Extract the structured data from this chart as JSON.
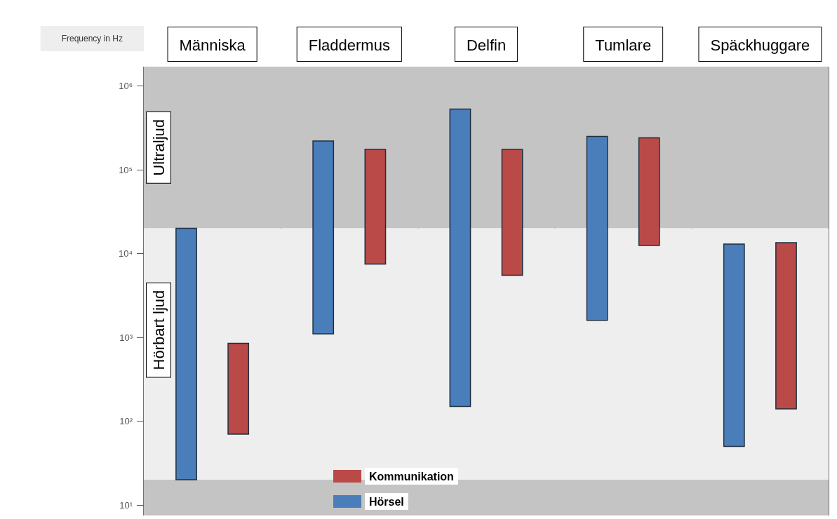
{
  "chart_data": {
    "type": "bar",
    "ylabel": "Frequency in Hz",
    "categories": [
      "Människa",
      "Fladdermus",
      "Delfin",
      "Tumlare",
      "Späckhuggare"
    ],
    "series": [
      {
        "name": "Hörsel",
        "color": "#4a7ebb",
        "base": [
          20,
          1100,
          150,
          1600,
          50
        ],
        "values": [
          19980,
          218900,
          529850,
          248400,
          12950
        ]
      },
      {
        "name": "Kommunikation",
        "color": "#b94a48",
        "base": [
          70,
          7500,
          5500,
          12500,
          140
        ],
        "values": [
          780,
          167500,
          169500,
          227500,
          13360
        ]
      }
    ],
    "log": "y",
    "ylim": [
      7.5,
      1700000
    ],
    "yticks": [
      {
        "value": 10,
        "label": "10¹"
      },
      {
        "value": 100,
        "label": "10²"
      },
      {
        "value": 1000,
        "label": "10³"
      },
      {
        "value": 10000,
        "label": "10⁴"
      },
      {
        "value": 100000,
        "label": "10⁵"
      },
      {
        "value": 1000000,
        "label": "10⁶"
      }
    ],
    "bands": [
      {
        "axis": "y",
        "from": 20000,
        "to": 1700000,
        "label": "Ultraljud",
        "color": "#c4c4c4"
      },
      {
        "axis": "y",
        "from": 20,
        "to": 20000,
        "label": "Hörbart ljud",
        "color": "#eeeeee"
      },
      {
        "axis": "y",
        "from": 7.5,
        "to": 20,
        "color": "#c4c4c4"
      }
    ],
    "grid": "x",
    "legend": "bottom"
  }
}
